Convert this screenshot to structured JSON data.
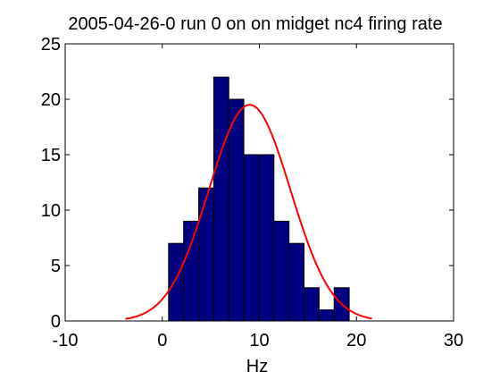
{
  "chart_data": {
    "type": "bar",
    "title": "2005-04-26-0 run 0 on on midget nc4 firing rate",
    "xlabel": "Hz",
    "ylabel": "",
    "xlim": [
      -10,
      30
    ],
    "ylim": [
      0,
      25
    ],
    "xticks": [
      "-10",
      "0",
      "10",
      "20",
      "30"
    ],
    "yticks": [
      "0",
      "5",
      "10",
      "15",
      "20",
      "25"
    ],
    "grid": false,
    "bin_width": 1.55,
    "bin_starts": [
      0.65,
      2.2,
      3.75,
      5.3,
      6.85,
      8.4,
      9.95,
      11.5,
      13.05,
      14.6,
      16.15,
      17.7,
      19.25
    ],
    "values": [
      7,
      9,
      12,
      22,
      20,
      15,
      15,
      9,
      7,
      3,
      1,
      3,
      0
    ],
    "bar_color": "#000080",
    "edge_color": "#000000",
    "fit_curve": {
      "type": "gaussian",
      "color": "#ff0000",
      "peak": 19.5,
      "mean": 9.0,
      "sigma": 4.2,
      "x_range": [
        -3.8,
        21.6
      ]
    }
  }
}
